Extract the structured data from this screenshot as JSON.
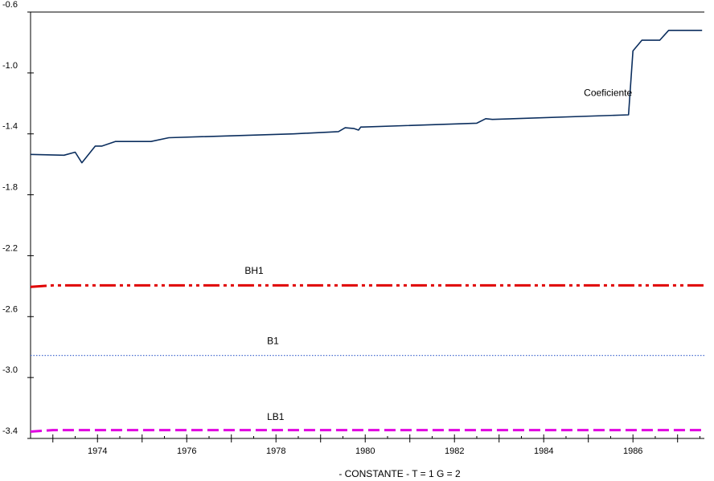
{
  "chart_data": {
    "type": "line",
    "xlabel": "- CONSTANTE  -  T  =  1    G  =  2",
    "ylabel": "",
    "ylim": [
      -3.4,
      -0.6
    ],
    "xlim": [
      1972.5,
      1987.6
    ],
    "grid": false,
    "yticks": [
      -0.6,
      -1.0,
      -1.4,
      -1.8,
      -2.2,
      -2.6,
      -3.0,
      -3.4
    ],
    "ytick_labels": [
      "-0.6",
      "-1.0",
      "-1.4",
      "-1.8",
      "-2.2",
      "-2.6",
      "-3.0",
      "-3.4"
    ],
    "xticks": [
      1974,
      1976,
      1978,
      1980,
      1982,
      1984,
      1986
    ],
    "xtick_labels": [
      "1974",
      "1976",
      "1978",
      "1980",
      "1982",
      "1984",
      "1986"
    ],
    "series": [
      {
        "name": "Coeficiente",
        "color": "#0b2e5e",
        "style": "solid",
        "x": [
          1972.5,
          1973.25,
          1973.5,
          1973.65,
          1973.95,
          1974.1,
          1974.4,
          1975.2,
          1975.6,
          1978.4,
          1979.4,
          1979.55,
          1979.75,
          1979.85,
          1979.9,
          1979.95,
          1982.5,
          1982.7,
          1982.85,
          1985.9,
          1986.0,
          1986.2,
          1986.6,
          1986.8,
          1987.0,
          1987.55
        ],
        "y": [
          -1.535,
          -1.54,
          -1.52,
          -1.59,
          -1.48,
          -1.48,
          -1.45,
          -1.45,
          -1.425,
          -1.4,
          -1.385,
          -1.36,
          -1.365,
          -1.375,
          -1.355,
          -1.355,
          -1.33,
          -1.3,
          -1.305,
          -1.275,
          -0.855,
          -0.785,
          -0.785,
          -0.72,
          -0.72,
          -0.72
        ],
        "label_at": [
          1984.9,
          -1.15
        ]
      },
      {
        "name": "BH1",
        "color": "#e00000",
        "style": "dash-dot-dot",
        "x": [
          1972.5,
          1973.0,
          1987.6
        ],
        "y": [
          -2.405,
          -2.395,
          -2.395
        ],
        "label_at": [
          1977.3,
          -2.32
        ]
      },
      {
        "name": "B1",
        "color": "#4a6fd0",
        "style": "dotted",
        "x": [
          1972.5,
          1987.6
        ],
        "y": [
          -2.855,
          -2.855
        ],
        "label_at": [
          1977.8,
          -2.78
        ]
      },
      {
        "name": "LB1",
        "color": "#e000e0",
        "style": "dashed",
        "x": [
          1972.5,
          1973.0,
          1987.6
        ],
        "y": [
          -3.355,
          -3.345,
          -3.345
        ],
        "label_at": [
          1977.8,
          -3.28
        ]
      }
    ]
  }
}
